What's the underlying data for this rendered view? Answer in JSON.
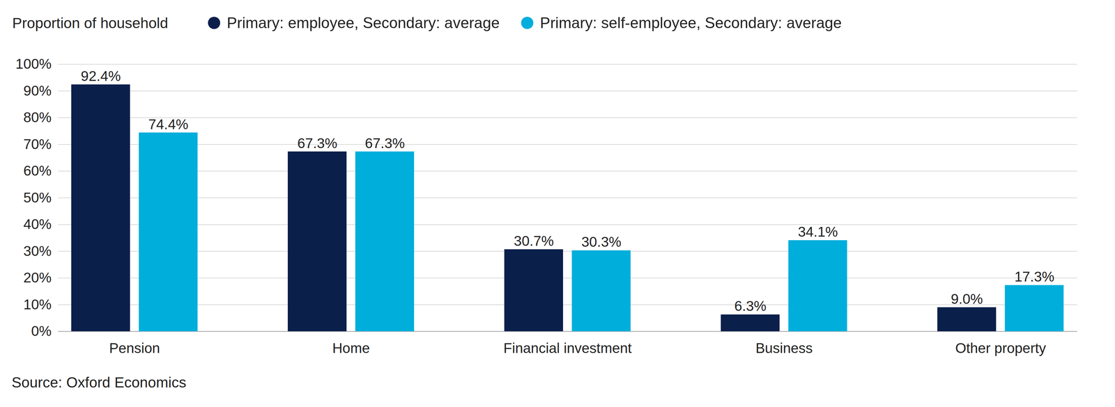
{
  "chart_data": {
    "type": "bar",
    "ylabel": "Proportion of household",
    "caption": "Source: Oxford Economics",
    "categories": [
      "Pension",
      "Home",
      "Financial investment",
      "Business",
      "Other property"
    ],
    "series": [
      {
        "name": "Primary: employee, Secondary: average",
        "color": "#0b1f4b",
        "values": [
          92.4,
          67.3,
          30.7,
          6.3,
          9.0
        ],
        "value_labels": [
          "92.4%",
          "67.3%",
          "30.7%",
          "6.3%",
          "9.0%"
        ]
      },
      {
        "name": "Primary: self-employee, Secondary: average",
        "color": "#00aedc",
        "values": [
          74.4,
          67.3,
          30.3,
          34.1,
          17.3
        ],
        "value_labels": [
          "74.4%",
          "67.3%",
          "30.3%",
          "34.1%",
          "17.3%"
        ]
      }
    ],
    "ylim": [
      0,
      100
    ],
    "yticks": [
      {
        "value": 0,
        "label": "0%"
      },
      {
        "value": 10,
        "label": "10%"
      },
      {
        "value": 20,
        "label": "20%"
      },
      {
        "value": 30,
        "label": "30%"
      },
      {
        "value": 40,
        "label": "40%"
      },
      {
        "value": 50,
        "label": "50%"
      },
      {
        "value": 60,
        "label": "60%"
      },
      {
        "value": 70,
        "label": "70%"
      },
      {
        "value": 80,
        "label": "80%"
      },
      {
        "value": 90,
        "label": "90%"
      },
      {
        "value": 100,
        "label": "100%"
      }
    ],
    "grid": true,
    "legend": "top",
    "data_labels": true
  }
}
